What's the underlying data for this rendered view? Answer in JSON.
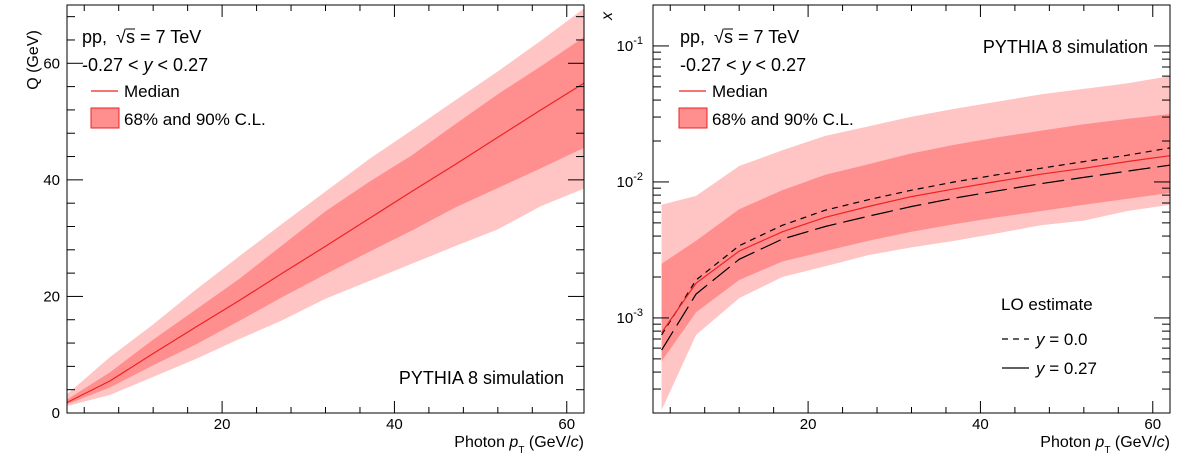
{
  "chart_data": [
    {
      "type": "area",
      "panel": "left",
      "x_label": {
        "prefix": "Photon ",
        "var": "p",
        "sub": "T",
        "unit_pre": " (GeV/",
        "unit_var": "c",
        "unit_post": ")"
      },
      "y_label": "Q (GeV)",
      "xlim": [
        2,
        62
      ],
      "ylim": [
        0,
        70
      ],
      "y_scale": "linear",
      "x_ticks": [
        20,
        40,
        60
      ],
      "y_ticks": [
        0,
        20,
        40,
        60
      ],
      "x_tick_labels": [
        "20",
        "40",
        "60"
      ],
      "y_tick_labels": [
        "0",
        "20",
        "40",
        "60"
      ],
      "annotations": {
        "system": "pp,",
        "energy": "s = 7 TeV",
        "rapidity_pre": "-0.27 < ",
        "rapidity_var": "y",
        "rapidity_post": " < 0.27",
        "simulation": "PYTHIA 8 simulation"
      },
      "legend": {
        "median": "Median",
        "band": "68% and 90% C.L."
      },
      "x": [
        2,
        7,
        12,
        17,
        22,
        27,
        32,
        37,
        42,
        47,
        52,
        57,
        62
      ],
      "median": [
        1.8,
        5.5,
        10.2,
        14.8,
        19.3,
        24.0,
        28.6,
        33.3,
        38.0,
        42.6,
        47.3,
        52.0,
        56.6
      ],
      "band68": {
        "low": [
          1.5,
          4.4,
          8.2,
          11.8,
          15.8,
          19.9,
          23.8,
          27.6,
          31.3,
          35.2,
          38.6,
          42.0,
          45.5
        ],
        "high": [
          2.3,
          7.0,
          12.6,
          17.8,
          23.0,
          28.8,
          34.6,
          39.6,
          44.2,
          49.5,
          54.7,
          59.5,
          64.5
        ]
      },
      "band90": {
        "low": [
          1.2,
          3.1,
          6.2,
          9.3,
          12.7,
          15.9,
          19.6,
          22.6,
          25.6,
          28.6,
          31.5,
          35.5,
          38.5
        ],
        "high": [
          3.2,
          9.6,
          15.2,
          21.2,
          26.9,
          32.5,
          38.0,
          43.5,
          48.5,
          53.6,
          58.6,
          63.9,
          69.4
        ]
      },
      "colors": {
        "median": "#ee2222",
        "band68": "#ff8f8f",
        "band90": "#ffc4c4"
      }
    },
    {
      "type": "area",
      "panel": "right",
      "x_label": {
        "prefix": "Photon ",
        "var": "p",
        "sub": "T",
        "unit_pre": " (GeV/",
        "unit_var": "c",
        "unit_post": ")"
      },
      "y_label": "x",
      "xlim": [
        2,
        62
      ],
      "ylim": [
        0.0002,
        0.2
      ],
      "y_scale": "log",
      "x_ticks": [
        20,
        40,
        60
      ],
      "x_tick_labels": [
        "20",
        "40",
        "60"
      ],
      "y_tick_labels": [
        {
          "base": "10",
          "exp": "-3",
          "value": 0.001
        },
        {
          "base": "10",
          "exp": "-2",
          "value": 0.01
        },
        {
          "base": "10",
          "exp": "-1",
          "value": 0.1
        }
      ],
      "annotations": {
        "system": "pp,",
        "energy": "s = 7 TeV",
        "rapidity_pre": "-0.27 < ",
        "rapidity_var": "y",
        "rapidity_post": " < 0.27",
        "simulation": "PYTHIA 8 simulation",
        "lo_title": "LO estimate",
        "lo_y0_var": "y",
        "lo_y0_post": " = 0.0",
        "lo_y27_var": "y",
        "lo_y27_post": " = 0.27"
      },
      "legend": {
        "median": "Median",
        "band": "68% and 90% C.L."
      },
      "x": [
        3,
        7,
        12,
        17,
        22,
        27,
        32,
        37,
        42,
        47,
        52,
        57,
        62
      ],
      "median": [
        0.00078,
        0.0018,
        0.0031,
        0.0043,
        0.0055,
        0.0066,
        0.0078,
        0.0089,
        0.0101,
        0.0114,
        0.0126,
        0.0141,
        0.0156
      ],
      "band68": {
        "low": [
          0.00048,
          0.0011,
          0.0019,
          0.0026,
          0.0031,
          0.0037,
          0.0043,
          0.0049,
          0.0055,
          0.0061,
          0.0068,
          0.0075,
          0.0083
        ],
        "high": [
          0.0025,
          0.0037,
          0.0063,
          0.0087,
          0.0113,
          0.0135,
          0.0162,
          0.0188,
          0.0213,
          0.0238,
          0.0266,
          0.0291,
          0.0316
        ]
      },
      "band90": {
        "low": [
          0.00021,
          0.00075,
          0.0014,
          0.002,
          0.0024,
          0.0029,
          0.0033,
          0.0037,
          0.0042,
          0.0048,
          0.0052,
          0.0061,
          0.0068
        ],
        "high": [
          0.0068,
          0.0079,
          0.0131,
          0.0171,
          0.0218,
          0.0256,
          0.0302,
          0.0345,
          0.039,
          0.044,
          0.0483,
          0.053,
          0.06
        ]
      },
      "lo_y0": [
        0.00075,
        0.0019,
        0.0034,
        0.0048,
        0.0062,
        0.0074,
        0.0087,
        0.01,
        0.0113,
        0.0126,
        0.0141,
        0.0157,
        0.0178
      ],
      "lo_y27": [
        0.00058,
        0.0015,
        0.0027,
        0.0038,
        0.0047,
        0.0056,
        0.0066,
        0.0076,
        0.0086,
        0.0097,
        0.0108,
        0.012,
        0.0133
      ],
      "colors": {
        "median": "#ee2222",
        "band68": "#ff8f8f",
        "band90": "#ffc4c4",
        "lo": "#000000"
      }
    }
  ]
}
